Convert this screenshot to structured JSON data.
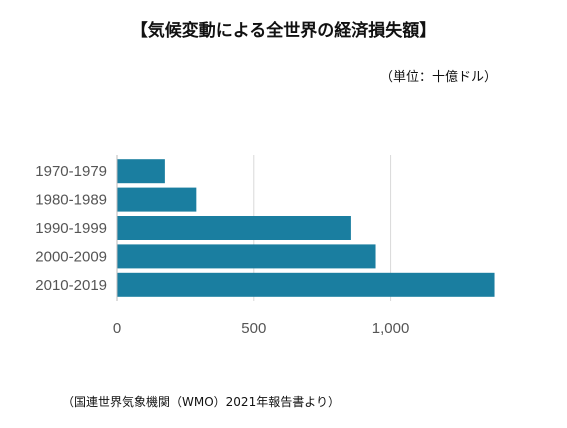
{
  "header": {
    "title": "【気候変動による全世界の経済損失額】",
    "unit": "（単位：十億ドル）"
  },
  "footer": {
    "source": "（国連世界気象機関（WMO）2021年報告書より）"
  },
  "colors": {
    "bar": "#1a7ea0",
    "grid": "#d9d9d9",
    "axis": "#bbbbbb"
  },
  "chart_data": {
    "type": "bar",
    "orientation": "horizontal",
    "categories": [
      "1970-1979",
      "1980-1989",
      "1990-1999",
      "2000-2009",
      "2010-2019"
    ],
    "values": [
      175,
      290,
      855,
      945,
      1380
    ],
    "xlim": [
      0,
      1400
    ],
    "xticks": [
      0,
      500,
      1000
    ],
    "xtick_labels": [
      "0",
      "500",
      "1,000"
    ],
    "grid": true
  }
}
